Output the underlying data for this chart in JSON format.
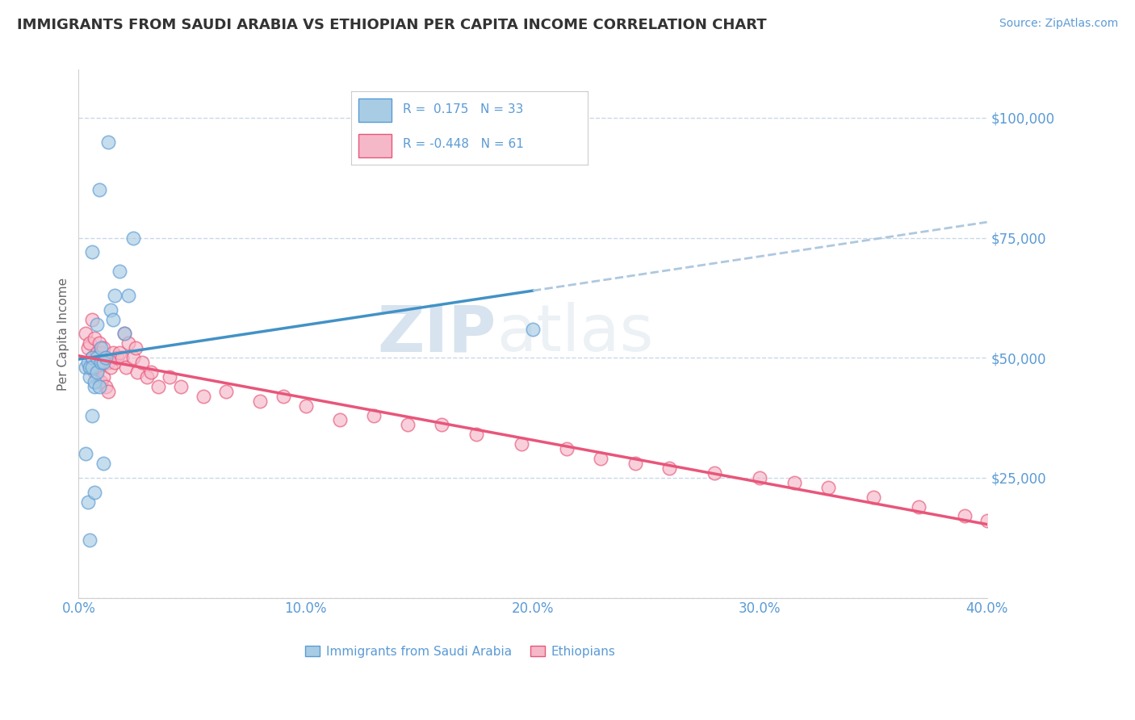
{
  "title": "IMMIGRANTS FROM SAUDI ARABIA VS ETHIOPIAN PER CAPITA INCOME CORRELATION CHART",
  "source": "Source: ZipAtlas.com",
  "ylabel": "Per Capita Income",
  "xlim": [
    0.0,
    0.4
  ],
  "ylim": [
    0,
    110000
  ],
  "xticks": [
    0.0,
    0.1,
    0.2,
    0.3,
    0.4
  ],
  "xticklabels": [
    "0.0%",
    "10.0%",
    "20.0%",
    "30.0%",
    "40.0%"
  ],
  "yticks": [
    0,
    25000,
    50000,
    75000,
    100000
  ],
  "yticklabels": [
    "",
    "$25,000",
    "$50,000",
    "$75,000",
    "$100,000"
  ],
  "background_color": "#ffffff",
  "watermark_zip": "ZIP",
  "watermark_atlas": "atlas",
  "legend_r1": "R =  0.175",
  "legend_n1": "N = 33",
  "legend_r2": "R = -0.448",
  "legend_n2": "N = 61",
  "label_saudi": "Immigrants from Saudi Arabia",
  "label_ethiopian": "Ethiopians",
  "color_saudi_fill": "#a8cce4",
  "color_saudi_edge": "#5b9bd5",
  "color_ethiopian_fill": "#f5b8c8",
  "color_ethiopian_edge": "#e8567a",
  "color_saudi_line": "#4292c6",
  "color_ethiopian_line": "#e8567a",
  "color_dashed": "#aec8df",
  "color_tick": "#5b9bd5",
  "saudi_x": [
    0.003,
    0.004,
    0.004,
    0.005,
    0.005,
    0.005,
    0.006,
    0.006,
    0.006,
    0.007,
    0.007,
    0.007,
    0.008,
    0.008,
    0.008,
    0.009,
    0.009,
    0.01,
    0.01,
    0.011,
    0.011,
    0.012,
    0.013,
    0.014,
    0.015,
    0.016,
    0.018,
    0.02,
    0.022,
    0.024,
    0.003,
    0.2,
    0.006
  ],
  "saudi_y": [
    48000,
    20000,
    49000,
    46000,
    48000,
    12000,
    38000,
    50000,
    48000,
    44000,
    45000,
    22000,
    57000,
    47000,
    50000,
    44000,
    85000,
    49000,
    52000,
    49000,
    28000,
    50000,
    95000,
    60000,
    58000,
    63000,
    68000,
    55000,
    63000,
    75000,
    30000,
    56000,
    72000
  ],
  "ethiopian_x": [
    0.003,
    0.004,
    0.005,
    0.005,
    0.006,
    0.006,
    0.007,
    0.007,
    0.008,
    0.008,
    0.009,
    0.009,
    0.01,
    0.01,
    0.011,
    0.011,
    0.012,
    0.012,
    0.013,
    0.013,
    0.014,
    0.015,
    0.016,
    0.017,
    0.018,
    0.019,
    0.02,
    0.021,
    0.022,
    0.024,
    0.025,
    0.026,
    0.028,
    0.03,
    0.032,
    0.035,
    0.04,
    0.045,
    0.055,
    0.065,
    0.08,
    0.09,
    0.1,
    0.115,
    0.13,
    0.145,
    0.16,
    0.175,
    0.195,
    0.215,
    0.23,
    0.245,
    0.26,
    0.28,
    0.3,
    0.315,
    0.33,
    0.35,
    0.37,
    0.39,
    0.4
  ],
  "ethiopian_y": [
    55000,
    52000,
    53000,
    48000,
    58000,
    50000,
    54000,
    47000,
    51000,
    46000,
    53000,
    48000,
    51000,
    45000,
    52000,
    46000,
    50000,
    44000,
    49000,
    43000,
    48000,
    51000,
    49000,
    50000,
    51000,
    50000,
    55000,
    48000,
    53000,
    50000,
    52000,
    47000,
    49000,
    46000,
    47000,
    44000,
    46000,
    44000,
    42000,
    43000,
    41000,
    42000,
    40000,
    37000,
    38000,
    36000,
    36000,
    34000,
    32000,
    31000,
    29000,
    28000,
    27000,
    26000,
    25000,
    24000,
    23000,
    21000,
    19000,
    17000,
    16000
  ]
}
